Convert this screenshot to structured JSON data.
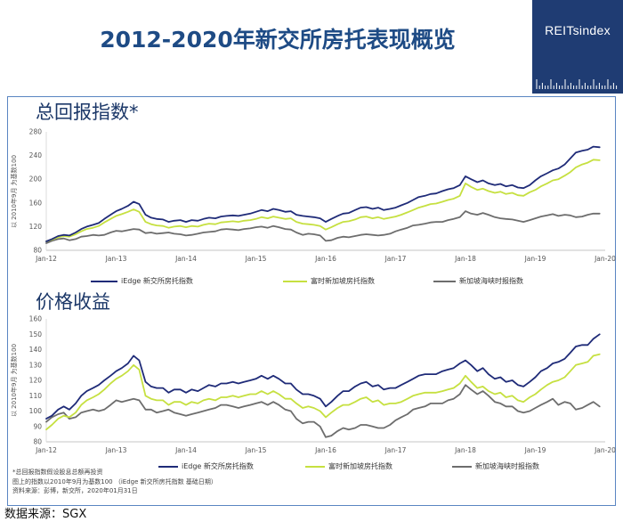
{
  "title": "2012-2020年新交所房托表现概览",
  "logo": {
    "text": "REITsindex"
  },
  "colors": {
    "title": "#1e4b85",
    "heading": "#1b3768",
    "logo_background": "#1f3c73",
    "frame": "#5a85c2"
  },
  "chart_data": [
    {
      "type": "line",
      "title": "总回报指数*",
      "xlabel": "",
      "ylabel": "以 2010年9月 为基数100",
      "xlim": [
        2012,
        2020
      ],
      "ylim": [
        80,
        280
      ],
      "xticks": [
        2012,
        2013,
        2014,
        2015,
        2016,
        2017,
        2018,
        2019,
        2020
      ],
      "xtick_labels": [
        "Jan-12",
        "Jan-13",
        "Jan-14",
        "Jan-15",
        "Jan-16",
        "Jan-17",
        "Jan-18",
        "Jan-19",
        "Jan-20"
      ],
      "yticks": [
        80,
        120,
        160,
        200,
        240,
        280
      ],
      "grid": false,
      "legend": "bottom",
      "x": [
        2012,
        2012.08,
        2012.17,
        2012.25,
        2012.33,
        2012.42,
        2012.5,
        2012.58,
        2012.67,
        2012.75,
        2012.83,
        2012.92,
        2013,
        2013.08,
        2013.17,
        2013.25,
        2013.33,
        2013.42,
        2013.5,
        2013.58,
        2013.67,
        2013.75,
        2013.83,
        2013.92,
        2014,
        2014.08,
        2014.17,
        2014.25,
        2014.33,
        2014.42,
        2014.5,
        2014.58,
        2014.67,
        2014.75,
        2014.83,
        2014.92,
        2015,
        2015.08,
        2015.17,
        2015.25,
        2015.33,
        2015.42,
        2015.5,
        2015.58,
        2015.67,
        2015.75,
        2015.83,
        2015.92,
        2016,
        2016.08,
        2016.17,
        2016.25,
        2016.33,
        2016.42,
        2016.5,
        2016.58,
        2016.67,
        2016.75,
        2016.83,
        2016.92,
        2017,
        2017.08,
        2017.17,
        2017.25,
        2017.33,
        2017.42,
        2017.5,
        2017.58,
        2017.67,
        2017.75,
        2017.83,
        2017.92,
        2018,
        2018.08,
        2018.17,
        2018.25,
        2018.33,
        2018.42,
        2018.5,
        2018.58,
        2018.67,
        2018.75,
        2018.83,
        2018.92,
        2019,
        2019.08,
        2019.17,
        2019.25,
        2019.33,
        2019.42,
        2019.5,
        2019.58,
        2019.67,
        2019.75,
        2019.83,
        2019.92
      ],
      "series": [
        {
          "name": "iEdge 新交所房托指数",
          "color": "#1f2b78",
          "values": [
            95,
            99,
            104,
            106,
            105,
            110,
            116,
            120,
            123,
            126,
            133,
            140,
            146,
            150,
            155,
            162,
            158,
            140,
            135,
            133,
            132,
            128,
            130,
            131,
            128,
            131,
            130,
            133,
            135,
            134,
            137,
            138,
            139,
            138,
            140,
            142,
            145,
            148,
            146,
            150,
            148,
            145,
            146,
            140,
            138,
            137,
            136,
            134,
            128,
            133,
            138,
            142,
            143,
            148,
            152,
            153,
            150,
            152,
            148,
            150,
            152,
            156,
            160,
            165,
            170,
            172,
            175,
            176,
            180,
            183,
            185,
            190,
            205,
            200,
            195,
            198,
            193,
            190,
            192,
            188,
            190,
            186,
            185,
            190,
            198,
            205,
            210,
            215,
            218,
            225,
            235,
            245,
            248,
            250,
            255,
            254
          ]
        },
        {
          "name": "富时新加坡房托指数",
          "color": "#c6e040",
          "values": [
            95,
            98,
            102,
            104,
            103,
            107,
            112,
            116,
            118,
            121,
            127,
            133,
            138,
            141,
            145,
            149,
            145,
            128,
            124,
            122,
            121,
            118,
            120,
            121,
            119,
            121,
            120,
            123,
            125,
            124,
            127,
            128,
            129,
            128,
            130,
            131,
            133,
            136,
            134,
            137,
            135,
            133,
            134,
            128,
            125,
            124,
            123,
            121,
            115,
            119,
            124,
            128,
            129,
            132,
            136,
            137,
            134,
            136,
            133,
            135,
            137,
            140,
            144,
            148,
            152,
            155,
            158,
            159,
            162,
            165,
            167,
            172,
            193,
            187,
            182,
            184,
            180,
            177,
            179,
            175,
            177,
            173,
            172,
            178,
            182,
            188,
            193,
            198,
            200,
            206,
            212,
            220,
            225,
            228,
            233,
            232
          ]
        },
        {
          "name": "新加坡海峡时报指数",
          "color": "#6d6d6d",
          "values": [
            92,
            96,
            99,
            100,
            97,
            99,
            103,
            104,
            106,
            105,
            106,
            110,
            113,
            112,
            114,
            116,
            115,
            109,
            110,
            108,
            109,
            110,
            108,
            107,
            105,
            106,
            108,
            110,
            111,
            112,
            115,
            116,
            115,
            114,
            116,
            117,
            119,
            120,
            118,
            121,
            119,
            116,
            115,
            110,
            106,
            108,
            107,
            105,
            96,
            97,
            101,
            103,
            102,
            104,
            106,
            107,
            106,
            105,
            106,
            108,
            112,
            115,
            118,
            122,
            123,
            125,
            127,
            128,
            128,
            131,
            133,
            136,
            146,
            142,
            140,
            143,
            140,
            136,
            134,
            133,
            132,
            130,
            128,
            131,
            134,
            137,
            139,
            141,
            138,
            140,
            139,
            136,
            137,
            140,
            142,
            142
          ]
        }
      ]
    },
    {
      "type": "line",
      "title": "价格收益",
      "xlabel": "",
      "ylabel": "以 2010年9月 为基数100",
      "xlim": [
        2012,
        2020
      ],
      "ylim": [
        80,
        160
      ],
      "xticks": [
        2012,
        2013,
        2014,
        2015,
        2016,
        2017,
        2018,
        2019,
        2020
      ],
      "xtick_labels": [
        "Jan-12",
        "Jan-13",
        "Jan-14",
        "Jan-15",
        "Jan-16",
        "Jan-17",
        "Jan-18",
        "Jan-19",
        "Jan-20"
      ],
      "yticks": [
        80,
        90,
        100,
        110,
        120,
        130,
        140,
        150,
        160
      ],
      "grid": false,
      "legend": "bottom",
      "x": [
        2012,
        2012.08,
        2012.17,
        2012.25,
        2012.33,
        2012.42,
        2012.5,
        2012.58,
        2012.67,
        2012.75,
        2012.83,
        2012.92,
        2013,
        2013.08,
        2013.17,
        2013.25,
        2013.33,
        2013.42,
        2013.5,
        2013.58,
        2013.67,
        2013.75,
        2013.83,
        2013.92,
        2014,
        2014.08,
        2014.17,
        2014.25,
        2014.33,
        2014.42,
        2014.5,
        2014.58,
        2014.67,
        2014.75,
        2014.83,
        2014.92,
        2015,
        2015.08,
        2015.17,
        2015.25,
        2015.33,
        2015.42,
        2015.5,
        2015.58,
        2015.67,
        2015.75,
        2015.83,
        2015.92,
        2016,
        2016.08,
        2016.17,
        2016.25,
        2016.33,
        2016.42,
        2016.5,
        2016.58,
        2016.67,
        2016.75,
        2016.83,
        2016.92,
        2017,
        2017.08,
        2017.17,
        2017.25,
        2017.33,
        2017.42,
        2017.5,
        2017.58,
        2017.67,
        2017.75,
        2017.83,
        2017.92,
        2018,
        2018.08,
        2018.17,
        2018.25,
        2018.33,
        2018.42,
        2018.5,
        2018.58,
        2018.67,
        2018.75,
        2018.83,
        2018.92,
        2019,
        2019.08,
        2019.17,
        2019.25,
        2019.33,
        2019.42,
        2019.5,
        2019.58,
        2019.67,
        2019.75,
        2019.83,
        2019.92
      ],
      "series": [
        {
          "name": "iEdge 新交所房托指数",
          "color": "#1f2b78",
          "values": [
            95,
            97,
            101,
            103,
            101,
            105,
            110,
            113,
            115,
            117,
            120,
            123,
            126,
            128,
            131,
            136,
            133,
            119,
            116,
            115,
            115,
            112,
            114,
            114,
            112,
            114,
            113,
            115,
            117,
            116,
            118,
            118,
            119,
            118,
            119,
            120,
            121,
            123,
            121,
            123,
            121,
            118,
            118,
            114,
            111,
            111,
            110,
            108,
            103,
            106,
            110,
            113,
            113,
            116,
            118,
            119,
            116,
            117,
            114,
            115,
            115,
            117,
            119,
            121,
            123,
            124,
            124,
            124,
            126,
            127,
            128,
            131,
            133,
            130,
            126,
            128,
            124,
            121,
            122,
            119,
            120,
            117,
            116,
            119,
            122,
            126,
            128,
            131,
            132,
            134,
            138,
            142,
            143,
            143,
            147,
            150
          ]
        },
        {
          "name": "富时新加坡房托指数",
          "color": "#c6e040",
          "values": [
            88,
            91,
            95,
            97,
            96,
            99,
            104,
            107,
            109,
            111,
            114,
            118,
            121,
            123,
            126,
            130,
            127,
            110,
            108,
            107,
            107,
            104,
            106,
            106,
            104,
            106,
            105,
            107,
            108,
            107,
            109,
            109,
            110,
            109,
            110,
            111,
            111,
            113,
            111,
            113,
            111,
            108,
            108,
            105,
            102,
            103,
            102,
            100,
            96,
            99,
            102,
            104,
            104,
            106,
            108,
            109,
            106,
            107,
            104,
            105,
            105,
            106,
            108,
            110,
            111,
            112,
            112,
            112,
            113,
            114,
            115,
            118,
            123,
            119,
            115,
            116,
            113,
            111,
            112,
            109,
            110,
            107,
            106,
            109,
            111,
            114,
            117,
            119,
            120,
            122,
            126,
            130,
            131,
            132,
            136,
            137
          ]
        },
        {
          "name": "新加坡海峡时报指数",
          "color": "#6d6d6d",
          "values": [
            93,
            96,
            98,
            99,
            95,
            96,
            99,
            100,
            101,
            100,
            101,
            104,
            107,
            106,
            107,
            108,
            107,
            101,
            101,
            99,
            100,
            101,
            99,
            98,
            97,
            98,
            99,
            100,
            101,
            102,
            104,
            104,
            103,
            102,
            103,
            104,
            105,
            106,
            104,
            106,
            104,
            101,
            100,
            95,
            92,
            93,
            93,
            90,
            83,
            84,
            87,
            89,
            88,
            89,
            91,
            91,
            90,
            89,
            89,
            91,
            94,
            96,
            98,
            101,
            102,
            103,
            105,
            105,
            105,
            107,
            108,
            111,
            117,
            114,
            111,
            113,
            110,
            106,
            105,
            103,
            103,
            100,
            99,
            100,
            102,
            104,
            106,
            108,
            104,
            106,
            105,
            101,
            102,
            104,
            106,
            103
          ]
        }
      ]
    }
  ],
  "footnotes": [
    "*总回报指数假设股息总额再投资",
    "图上的指数以2010年9月为基数100 （iEdge 新交所房托指数 基础日期）",
    "资料来源：彭博，新交所，2020年01月31日"
  ],
  "source": "数据来源：SGX"
}
